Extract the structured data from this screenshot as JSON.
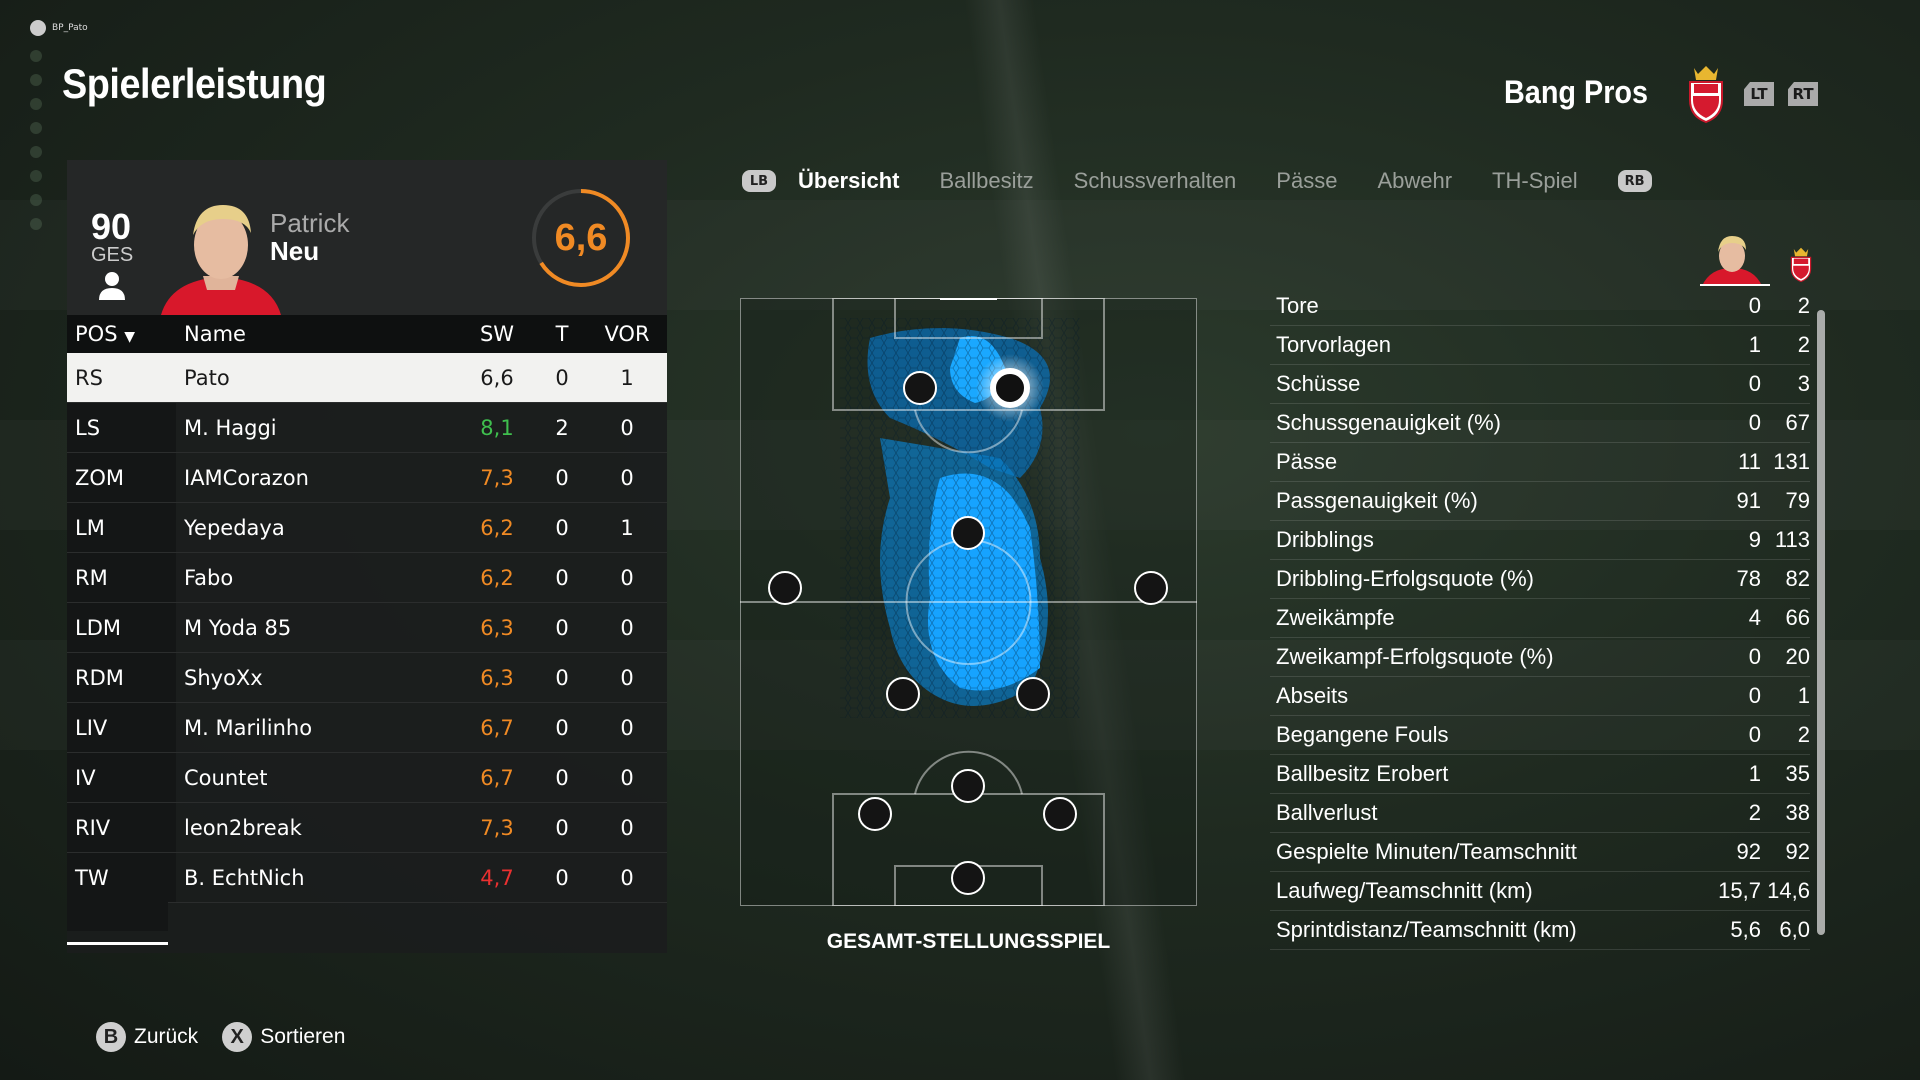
{
  "user": {
    "gamertag": "BP_Pato"
  },
  "page": {
    "title": "Spielerleistung"
  },
  "team": {
    "name": "Bang Pros",
    "triggers": [
      "LT",
      "RT"
    ]
  },
  "player": {
    "ovr": "90",
    "ovr_label": "GES",
    "first_name": "Patrick",
    "last_name": "Neu",
    "rating": "6,6",
    "rating_fraction": 0.66
  },
  "roster": {
    "headers": {
      "pos": "POS",
      "name": "Name",
      "sw": "SW",
      "t": "T",
      "vor": "VOR"
    },
    "rows": [
      {
        "pos": "RS",
        "name": "Pato",
        "sw": "6,6",
        "t": "0",
        "vor": "1"
      },
      {
        "pos": "LS",
        "name": "M. Haggi",
        "sw": "8,1",
        "t": "2",
        "vor": "0"
      },
      {
        "pos": "ZOM",
        "name": "IAMCorazon",
        "sw": "7,3",
        "t": "0",
        "vor": "0"
      },
      {
        "pos": "LM",
        "name": "Yepedaya",
        "sw": "6,2",
        "t": "0",
        "vor": "1"
      },
      {
        "pos": "RM",
        "name": "Fabo",
        "sw": "6,2",
        "t": "0",
        "vor": "0"
      },
      {
        "pos": "LDM",
        "name": "M Yoda 85",
        "sw": "6,3",
        "t": "0",
        "vor": "0"
      },
      {
        "pos": "RDM",
        "name": "ShyoXx",
        "sw": "6,3",
        "t": "0",
        "vor": "0"
      },
      {
        "pos": "LIV",
        "name": "M. Marilinho",
        "sw": "6,7",
        "t": "0",
        "vor": "0"
      },
      {
        "pos": "IV",
        "name": "Countet",
        "sw": "6,7",
        "t": "0",
        "vor": "0"
      },
      {
        "pos": "RIV",
        "name": "leon2break",
        "sw": "7,3",
        "t": "0",
        "vor": "0"
      },
      {
        "pos": "TW",
        "name": "B. EchtNich",
        "sw": "4,7",
        "t": "0",
        "vor": "0"
      }
    ]
  },
  "tabs": {
    "lb": "LB",
    "rb": "RB",
    "items": [
      "Übersicht",
      "Ballbesitz",
      "Schussverhalten",
      "Pässe",
      "Abwehr",
      "TH-Spiel"
    ],
    "active": "Übersicht"
  },
  "pitch": {
    "caption": "GESAMT-STELLUNGSSPIEL"
  },
  "stats": [
    {
      "label": "Tore",
      "player": "0",
      "team": "2"
    },
    {
      "label": "Torvorlagen",
      "player": "1",
      "team": "2"
    },
    {
      "label": "Schüsse",
      "player": "0",
      "team": "3"
    },
    {
      "label": "Schussgenauigkeit (%)",
      "player": "0",
      "team": "67"
    },
    {
      "label": "Pässe",
      "player": "11",
      "team": "131"
    },
    {
      "label": "Passgenauigkeit (%)",
      "player": "91",
      "team": "79"
    },
    {
      "label": "Dribblings",
      "player": "9",
      "team": "113"
    },
    {
      "label": "Dribbling-Erfolgsquote (%)",
      "player": "78",
      "team": "82"
    },
    {
      "label": "Zweikämpfe",
      "player": "4",
      "team": "66"
    },
    {
      "label": "Zweikampf-Erfolgsquote (%)",
      "player": "0",
      "team": "20"
    },
    {
      "label": "Abseits",
      "player": "0",
      "team": "1"
    },
    {
      "label": "Begangene Fouls",
      "player": "0",
      "team": "2"
    },
    {
      "label": "Ballbesitz Erobert",
      "player": "1",
      "team": "35"
    },
    {
      "label": "Ballverlust",
      "player": "2",
      "team": "38"
    },
    {
      "label": "Gespielte Minuten/Teamschnitt",
      "player": "92",
      "team": "92"
    },
    {
      "label": "Laufweg/Teamschnitt (km)",
      "player": "15,7",
      "team": "14,6"
    },
    {
      "label": "Sprintdistanz/Teamschnitt (km)",
      "player": "5,6",
      "team": "6,0"
    }
  ],
  "hints": [
    {
      "glyph": "B",
      "label": "Zurück"
    },
    {
      "glyph": "X",
      "label": "Sortieren"
    }
  ],
  "colors": {
    "accent_orange": "#f08a24",
    "good_green": "#3fbf4e",
    "bad_red": "#ea3030",
    "heat_blue": "#0aa0ff"
  },
  "icons": {
    "person": "person-icon",
    "sort": "sort-down-icon",
    "crest": "team-crest-icon"
  }
}
